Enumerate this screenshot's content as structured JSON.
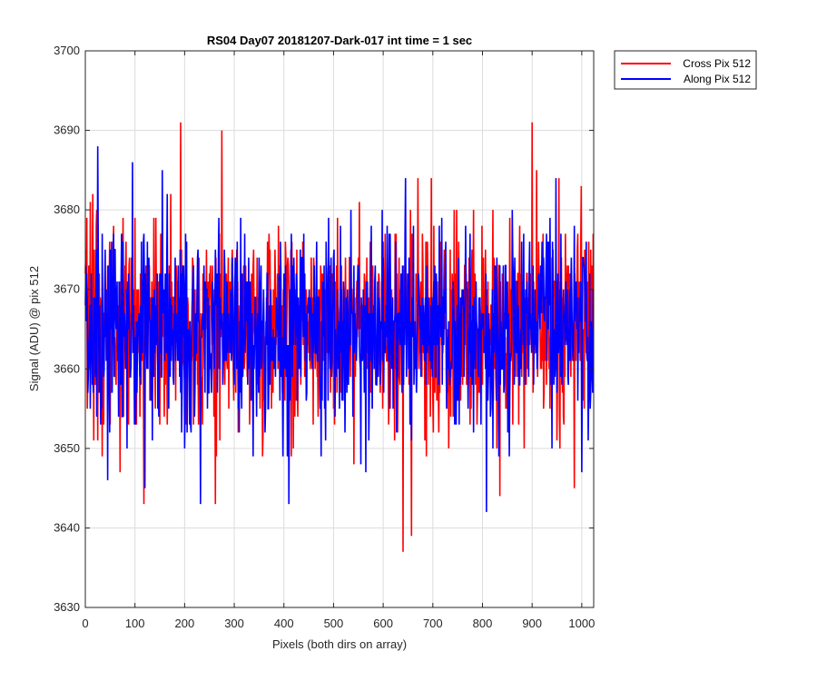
{
  "chart_data": {
    "type": "line",
    "title": "RS04 Day07 20181207-Dark-017 int time = 1 sec",
    "xlabel": "Pixels (both dirs on array)",
    "ylabel": "Signal (ADU) @ pix 512",
    "xlim": [
      0,
      1024
    ],
    "ylim": [
      3630,
      3700
    ],
    "xticks": [
      0,
      100,
      200,
      300,
      400,
      500,
      600,
      700,
      800,
      900,
      1000
    ],
    "yticks": [
      3630,
      3640,
      3650,
      3660,
      3670,
      3680,
      3690,
      3700
    ],
    "grid": true,
    "legend_position": "outside-top-right",
    "series": [
      {
        "name": "Cross Pix 512",
        "color": "#ff0000",
        "n_points": 1024,
        "mean": 3665,
        "std": 6.5,
        "key_points": [
          {
            "x": 0,
            "y": 3672
          },
          {
            "x": 10,
            "y": 3681
          },
          {
            "x": 50,
            "y": 3653
          },
          {
            "x": 70,
            "y": 3647
          },
          {
            "x": 118,
            "y": 3643
          },
          {
            "x": 192,
            "y": 3691
          },
          {
            "x": 262,
            "y": 3643
          },
          {
            "x": 275,
            "y": 3690
          },
          {
            "x": 415,
            "y": 3649
          },
          {
            "x": 640,
            "y": 3637
          },
          {
            "x": 657,
            "y": 3639
          },
          {
            "x": 670,
            "y": 3684
          },
          {
            "x": 835,
            "y": 3644
          },
          {
            "x": 900,
            "y": 3691
          },
          {
            "x": 985,
            "y": 3645
          },
          {
            "x": 1023,
            "y": 3677
          }
        ]
      },
      {
        "name": "Along Pix 512",
        "color": "#0000ff",
        "n_points": 1024,
        "mean": 3665,
        "std": 6.5,
        "key_points": [
          {
            "x": 0,
            "y": 3668
          },
          {
            "x": 25,
            "y": 3688
          },
          {
            "x": 45,
            "y": 3646
          },
          {
            "x": 95,
            "y": 3686
          },
          {
            "x": 120,
            "y": 3645
          },
          {
            "x": 155,
            "y": 3685
          },
          {
            "x": 232,
            "y": 3643
          },
          {
            "x": 410,
            "y": 3643
          },
          {
            "x": 565,
            "y": 3647
          },
          {
            "x": 645,
            "y": 3684
          },
          {
            "x": 808,
            "y": 3642
          },
          {
            "x": 860,
            "y": 3680
          },
          {
            "x": 1000,
            "y": 3647
          },
          {
            "x": 1023,
            "y": 3670
          }
        ]
      }
    ]
  }
}
